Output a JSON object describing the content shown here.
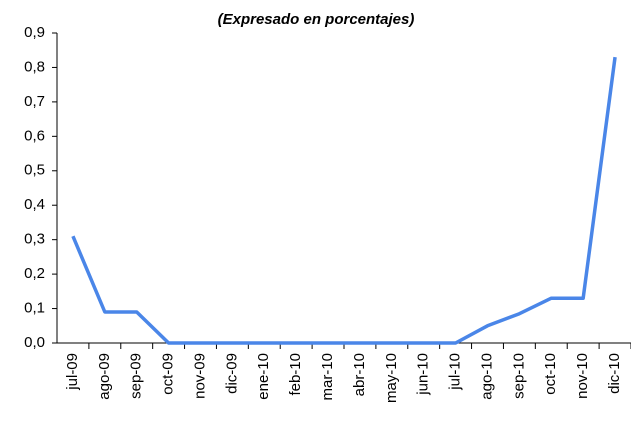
{
  "chart_data": {
    "type": "line",
    "title": "(Expresado en porcentajes)",
    "categories": [
      "jul-09",
      "ago-09",
      "sep-09",
      "oct-09",
      "nov-09",
      "dic-09",
      "ene-10",
      "feb-10",
      "mar-10",
      "abr-10",
      "may-10",
      "jun-10",
      "jul-10",
      "ago-10",
      "sep-10",
      "oct-10",
      "nov-10",
      "dic-10"
    ],
    "values": [
      0.31,
      0.09,
      0.09,
      0,
      0,
      0,
      0,
      0,
      0,
      0,
      0,
      0,
      0,
      0.05,
      0.085,
      0.13,
      0.13,
      0.83
    ],
    "color": "#4a86e8",
    "ylim": [
      0,
      0.9
    ],
    "yticks": [
      {
        "value": 0,
        "label": "0,0"
      },
      {
        "value": 0.1,
        "label": "0,1"
      },
      {
        "value": 0.2,
        "label": "0,2"
      },
      {
        "value": 0.3,
        "label": "0,3"
      },
      {
        "value": 0.4,
        "label": "0,4"
      },
      {
        "value": 0.5,
        "label": "0,5"
      },
      {
        "value": 0.6,
        "label": "0,6"
      },
      {
        "value": 0.7,
        "label": "0,7"
      },
      {
        "value": 0.8,
        "label": "0,8"
      },
      {
        "value": 0.9,
        "label": "0,9"
      }
    ]
  }
}
